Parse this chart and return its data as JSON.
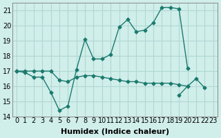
{
  "xlabel": "Humidex (Indice chaleur)",
  "x": [
    0,
    1,
    2,
    3,
    4,
    5,
    6,
    7,
    8,
    9,
    10,
    11,
    12,
    13,
    14,
    15,
    16,
    17,
    18,
    19,
    20,
    21,
    22,
    23
  ],
  "line1": [
    17.0,
    16.9,
    16.6,
    16.6,
    15.6,
    14.4,
    14.7,
    17.1,
    19.1,
    17.8,
    17.8,
    18.1,
    19.9,
    20.4,
    19.6,
    19.7,
    20.2,
    21.2,
    21.2,
    21.1,
    17.2,
    null,
    null,
    null
  ],
  "line2": [
    17.0,
    17.0,
    17.0,
    17.0,
    17.0,
    16.4,
    16.3,
    16.6,
    16.7,
    16.7,
    16.6,
    16.5,
    16.4,
    16.3,
    16.3,
    16.2,
    16.2,
    16.2,
    16.2,
    16.1,
    16.0,
    null,
    null,
    null
  ],
  "line3": [
    null,
    null,
    null,
    null,
    null,
    null,
    null,
    null,
    null,
    null,
    null,
    null,
    null,
    null,
    null,
    null,
    null,
    null,
    null,
    15.4,
    16.0,
    16.5,
    15.9,
    null
  ],
  "line_color": "#1a7a6e",
  "bg_color": "#d0eeea",
  "grid_color": "#b0d8d4",
  "ylim": [
    14,
    21.5
  ],
  "xlim": [
    -0.5,
    23.5
  ],
  "yticks": [
    14,
    15,
    16,
    17,
    18,
    19,
    20,
    21
  ],
  "xticks": [
    0,
    1,
    2,
    3,
    4,
    5,
    6,
    7,
    8,
    9,
    10,
    11,
    12,
    13,
    14,
    15,
    16,
    17,
    18,
    19,
    20,
    21,
    22,
    23
  ],
  "fontsize": 8
}
